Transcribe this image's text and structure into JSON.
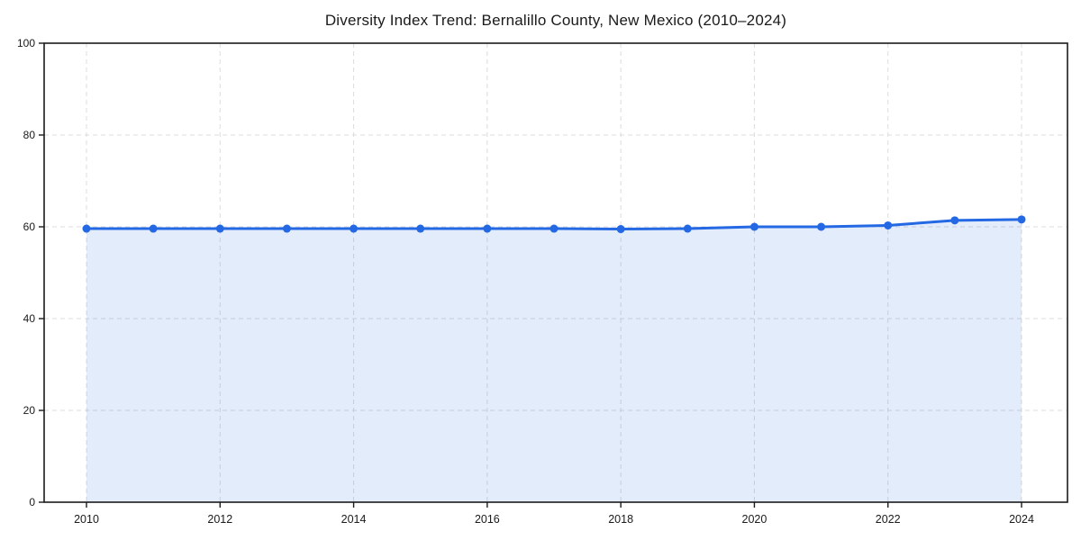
{
  "chart_data": {
    "type": "area",
    "title": "Diversity Index Trend: Bernalillo County, New Mexico (2010–2024)",
    "xlabel": "",
    "ylabel": "",
    "x": [
      2010,
      2011,
      2012,
      2013,
      2014,
      2015,
      2016,
      2017,
      2018,
      2019,
      2020,
      2021,
      2022,
      2023,
      2024
    ],
    "series": [
      {
        "name": "Diversity Index",
        "values": [
          59.6,
          59.6,
          59.6,
          59.6,
          59.6,
          59.6,
          59.6,
          59.6,
          59.5,
          59.6,
          60.0,
          60.0,
          60.3,
          61.4,
          61.6
        ]
      }
    ],
    "ylim": [
      0,
      100
    ],
    "y_ticks": [
      0,
      20,
      40,
      60,
      80,
      100
    ],
    "x_ticks": [
      2010,
      2012,
      2014,
      2016,
      2018,
      2020,
      2022,
      2024
    ],
    "grid": true,
    "legend": "none",
    "colors": {
      "line": "#2469e3",
      "marker": "#2469e3",
      "fill": "rgba(36, 105, 227, 0.13)",
      "grid": "#dcdcdc",
      "axis": "#1a1a1a",
      "tick_label": "#1a1a1a",
      "background": "#ffffff"
    }
  }
}
